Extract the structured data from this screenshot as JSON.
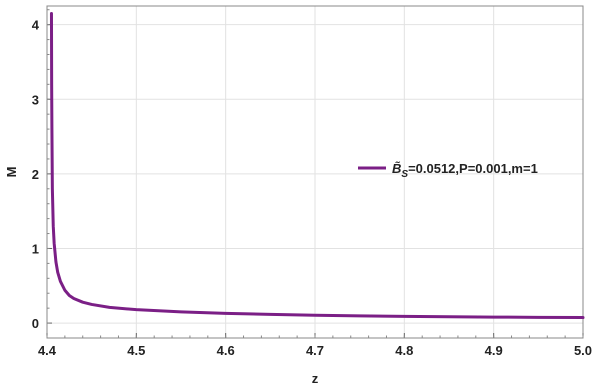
{
  "chart_data": {
    "type": "line",
    "xlabel": "z",
    "ylabel": "M",
    "xlim": [
      4.4,
      5.0
    ],
    "ylim": [
      -0.2,
      4.25
    ],
    "x_ticks": [
      "4.4",
      "4.5",
      "4.6",
      "4.7",
      "4.8",
      "4.9",
      "5.0"
    ],
    "y_ticks": [
      "0",
      "1",
      "2",
      "3",
      "4"
    ],
    "grid": true,
    "legend_position": "right",
    "series": [
      {
        "name": "B̃S=0.0512,P=0.001,m=1",
        "legend": {
          "symbol": "B̃",
          "subscript": "S",
          "rest": "=0.0512,P=0.001,m=1"
        },
        "color": "#7b1f86",
        "x": [
          4.405,
          4.4052,
          4.4055,
          4.406,
          4.407,
          4.408,
          4.41,
          4.412,
          4.415,
          4.42,
          4.425,
          4.43,
          4.44,
          4.45,
          4.47,
          4.5,
          4.55,
          4.6,
          4.65,
          4.7,
          4.75,
          4.8,
          4.85,
          4.9,
          4.95,
          5.0
        ],
        "y": [
          4.15,
          3.2,
          2.6,
          1.8,
          1.3,
          1.07,
          0.82,
          0.68,
          0.56,
          0.44,
          0.37,
          0.33,
          0.28,
          0.25,
          0.21,
          0.18,
          0.15,
          0.13,
          0.117,
          0.105,
          0.097,
          0.09,
          0.085,
          0.08,
          0.077,
          0.074
        ]
      }
    ]
  }
}
